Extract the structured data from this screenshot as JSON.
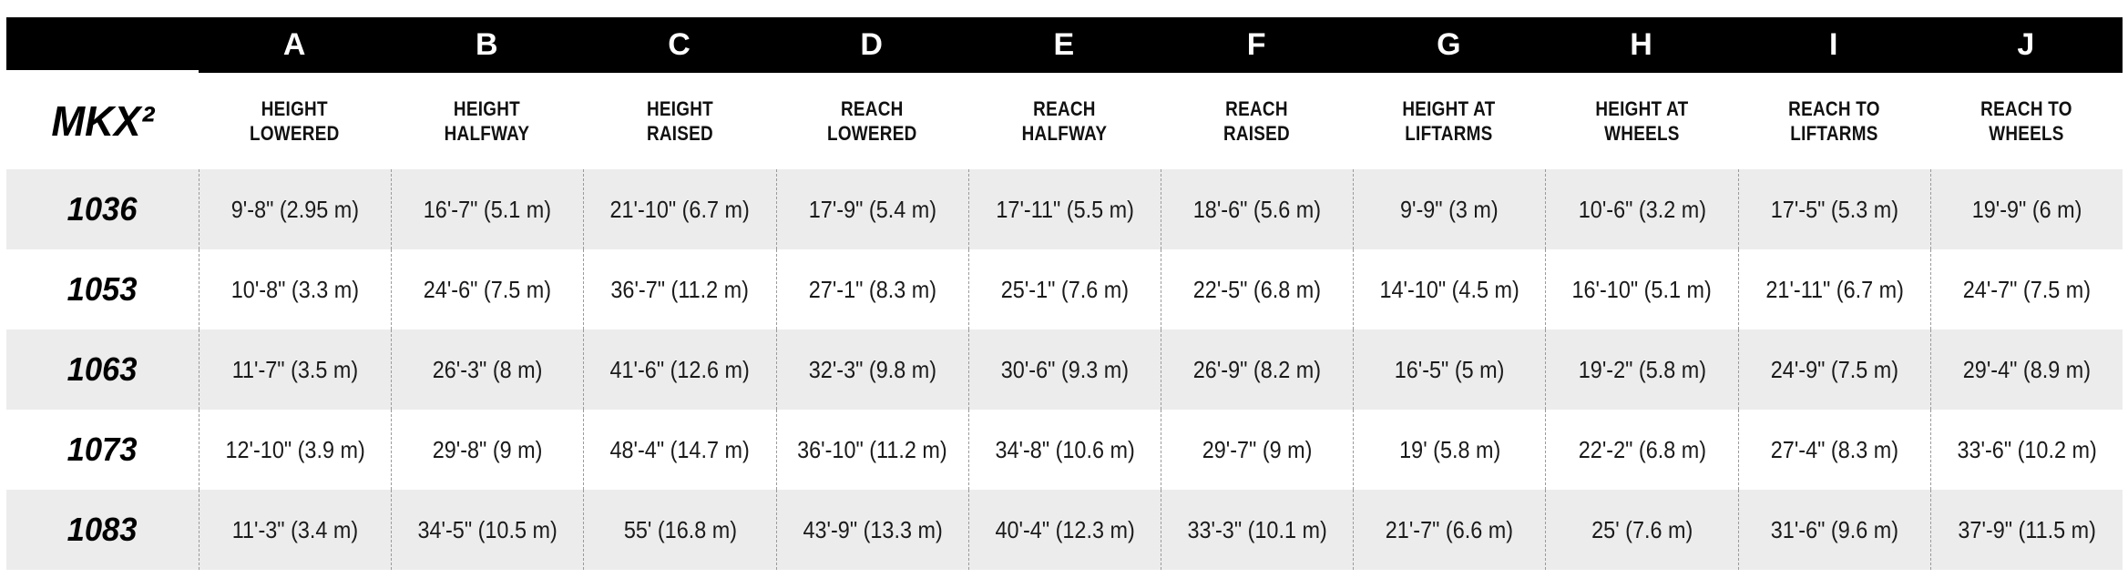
{
  "colors": {
    "header_bg": "#000000",
    "header_text": "#ffffff",
    "row_alt_bg": "#ececec",
    "divider": "#9b9b9b",
    "text": "#1a1a1a"
  },
  "table": {
    "brand": "MKX²",
    "letters": [
      "A",
      "B",
      "C",
      "D",
      "E",
      "F",
      "G",
      "H",
      "I",
      "J"
    ],
    "column_headers": [
      "HEIGHT\nLOWERED",
      "HEIGHT\nHALFWAY",
      "HEIGHT\nRAISED",
      "REACH\nLOWERED",
      "REACH\nHALFWAY",
      "REACH\nRAISED",
      "HEIGHT AT\nLIFTARMS",
      "HEIGHT AT\nWHEELS",
      "REACH TO\nLIFTARMS",
      "REACH TO\nWHEELS"
    ],
    "rows": [
      {
        "model": "1036",
        "values": [
          "9'-8\" (2.95 m)",
          "16'-7\" (5.1 m)",
          "21'-10\" (6.7 m)",
          "17'-9\" (5.4 m)",
          "17'-11\" (5.5 m)",
          "18'-6\" (5.6 m)",
          "9'-9\" (3 m)",
          "10'-6\" (3.2 m)",
          "17'-5\" (5.3 m)",
          "19'-9\" (6 m)"
        ]
      },
      {
        "model": "1053",
        "values": [
          "10'-8\" (3.3 m)",
          "24'-6\" (7.5 m)",
          "36'-7\" (11.2 m)",
          "27'-1\" (8.3 m)",
          "25'-1\" (7.6 m)",
          "22'-5\" (6.8 m)",
          "14'-10\" (4.5 m)",
          "16'-10\" (5.1 m)",
          "21'-11\" (6.7 m)",
          "24'-7\" (7.5 m)"
        ]
      },
      {
        "model": "1063",
        "values": [
          "11'-7\" (3.5 m)",
          "26'-3\" (8 m)",
          "41'-6\" (12.6 m)",
          "32'-3\" (9.8 m)",
          "30'-6\" (9.3 m)",
          "26'-9\" (8.2 m)",
          "16'-5\" (5 m)",
          "19'-2\" (5.8 m)",
          "24'-9\" (7.5 m)",
          "29'-4\" (8.9 m)"
        ]
      },
      {
        "model": "1073",
        "values": [
          "12'-10\" (3.9 m)",
          "29'-8\" (9 m)",
          "48'-4\" (14.7 m)",
          "36'-10\" (11.2 m)",
          "34'-8\" (10.6 m)",
          "29'-7\" (9 m)",
          "19' (5.8 m)",
          "22'-2\" (6.8 m)",
          "27'-4\" (8.3 m)",
          "33'-6\" (10.2 m)"
        ]
      },
      {
        "model": "1083",
        "values": [
          "11'-3\" (3.4 m)",
          "34'-5\" (10.5 m)",
          "55' (16.8 m)",
          "43'-9\" (13.3 m)",
          "40'-4\" (12.3 m)",
          "33'-3\" (10.1 m)",
          "21'-7\" (6.6 m)",
          "25' (7.6 m)",
          "31'-6\" (9.6 m)",
          "37'-9\" (11.5 m)"
        ]
      }
    ]
  },
  "chart_data": {
    "type": "table",
    "title": "MKX² lift specifications",
    "row_header": "MKX²",
    "column_letters": [
      "A",
      "B",
      "C",
      "D",
      "E",
      "F",
      "G",
      "H",
      "I",
      "J"
    ],
    "columns": [
      "HEIGHT LOWERED",
      "HEIGHT HALFWAY",
      "HEIGHT RAISED",
      "REACH LOWERED",
      "REACH HALFWAY",
      "REACH RAISED",
      "HEIGHT AT LIFTARMS",
      "HEIGHT AT WHEELS",
      "REACH TO LIFTARMS",
      "REACH TO WHEELS"
    ],
    "models": [
      "1036",
      "1053",
      "1063",
      "1073",
      "1083"
    ],
    "values_meters": [
      [
        2.95,
        5.1,
        6.7,
        5.4,
        5.5,
        5.6,
        3.0,
        3.2,
        5.3,
        6.0
      ],
      [
        3.3,
        7.5,
        11.2,
        8.3,
        7.6,
        6.8,
        4.5,
        5.1,
        6.7,
        7.5
      ],
      [
        3.5,
        8.0,
        12.6,
        9.8,
        9.3,
        8.2,
        5.0,
        5.8,
        7.5,
        8.9
      ],
      [
        3.9,
        9.0,
        14.7,
        11.2,
        10.6,
        9.0,
        5.8,
        6.8,
        8.3,
        10.2
      ],
      [
        3.4,
        10.5,
        16.8,
        13.3,
        12.3,
        10.1,
        6.6,
        7.6,
        9.6,
        11.5
      ]
    ]
  }
}
